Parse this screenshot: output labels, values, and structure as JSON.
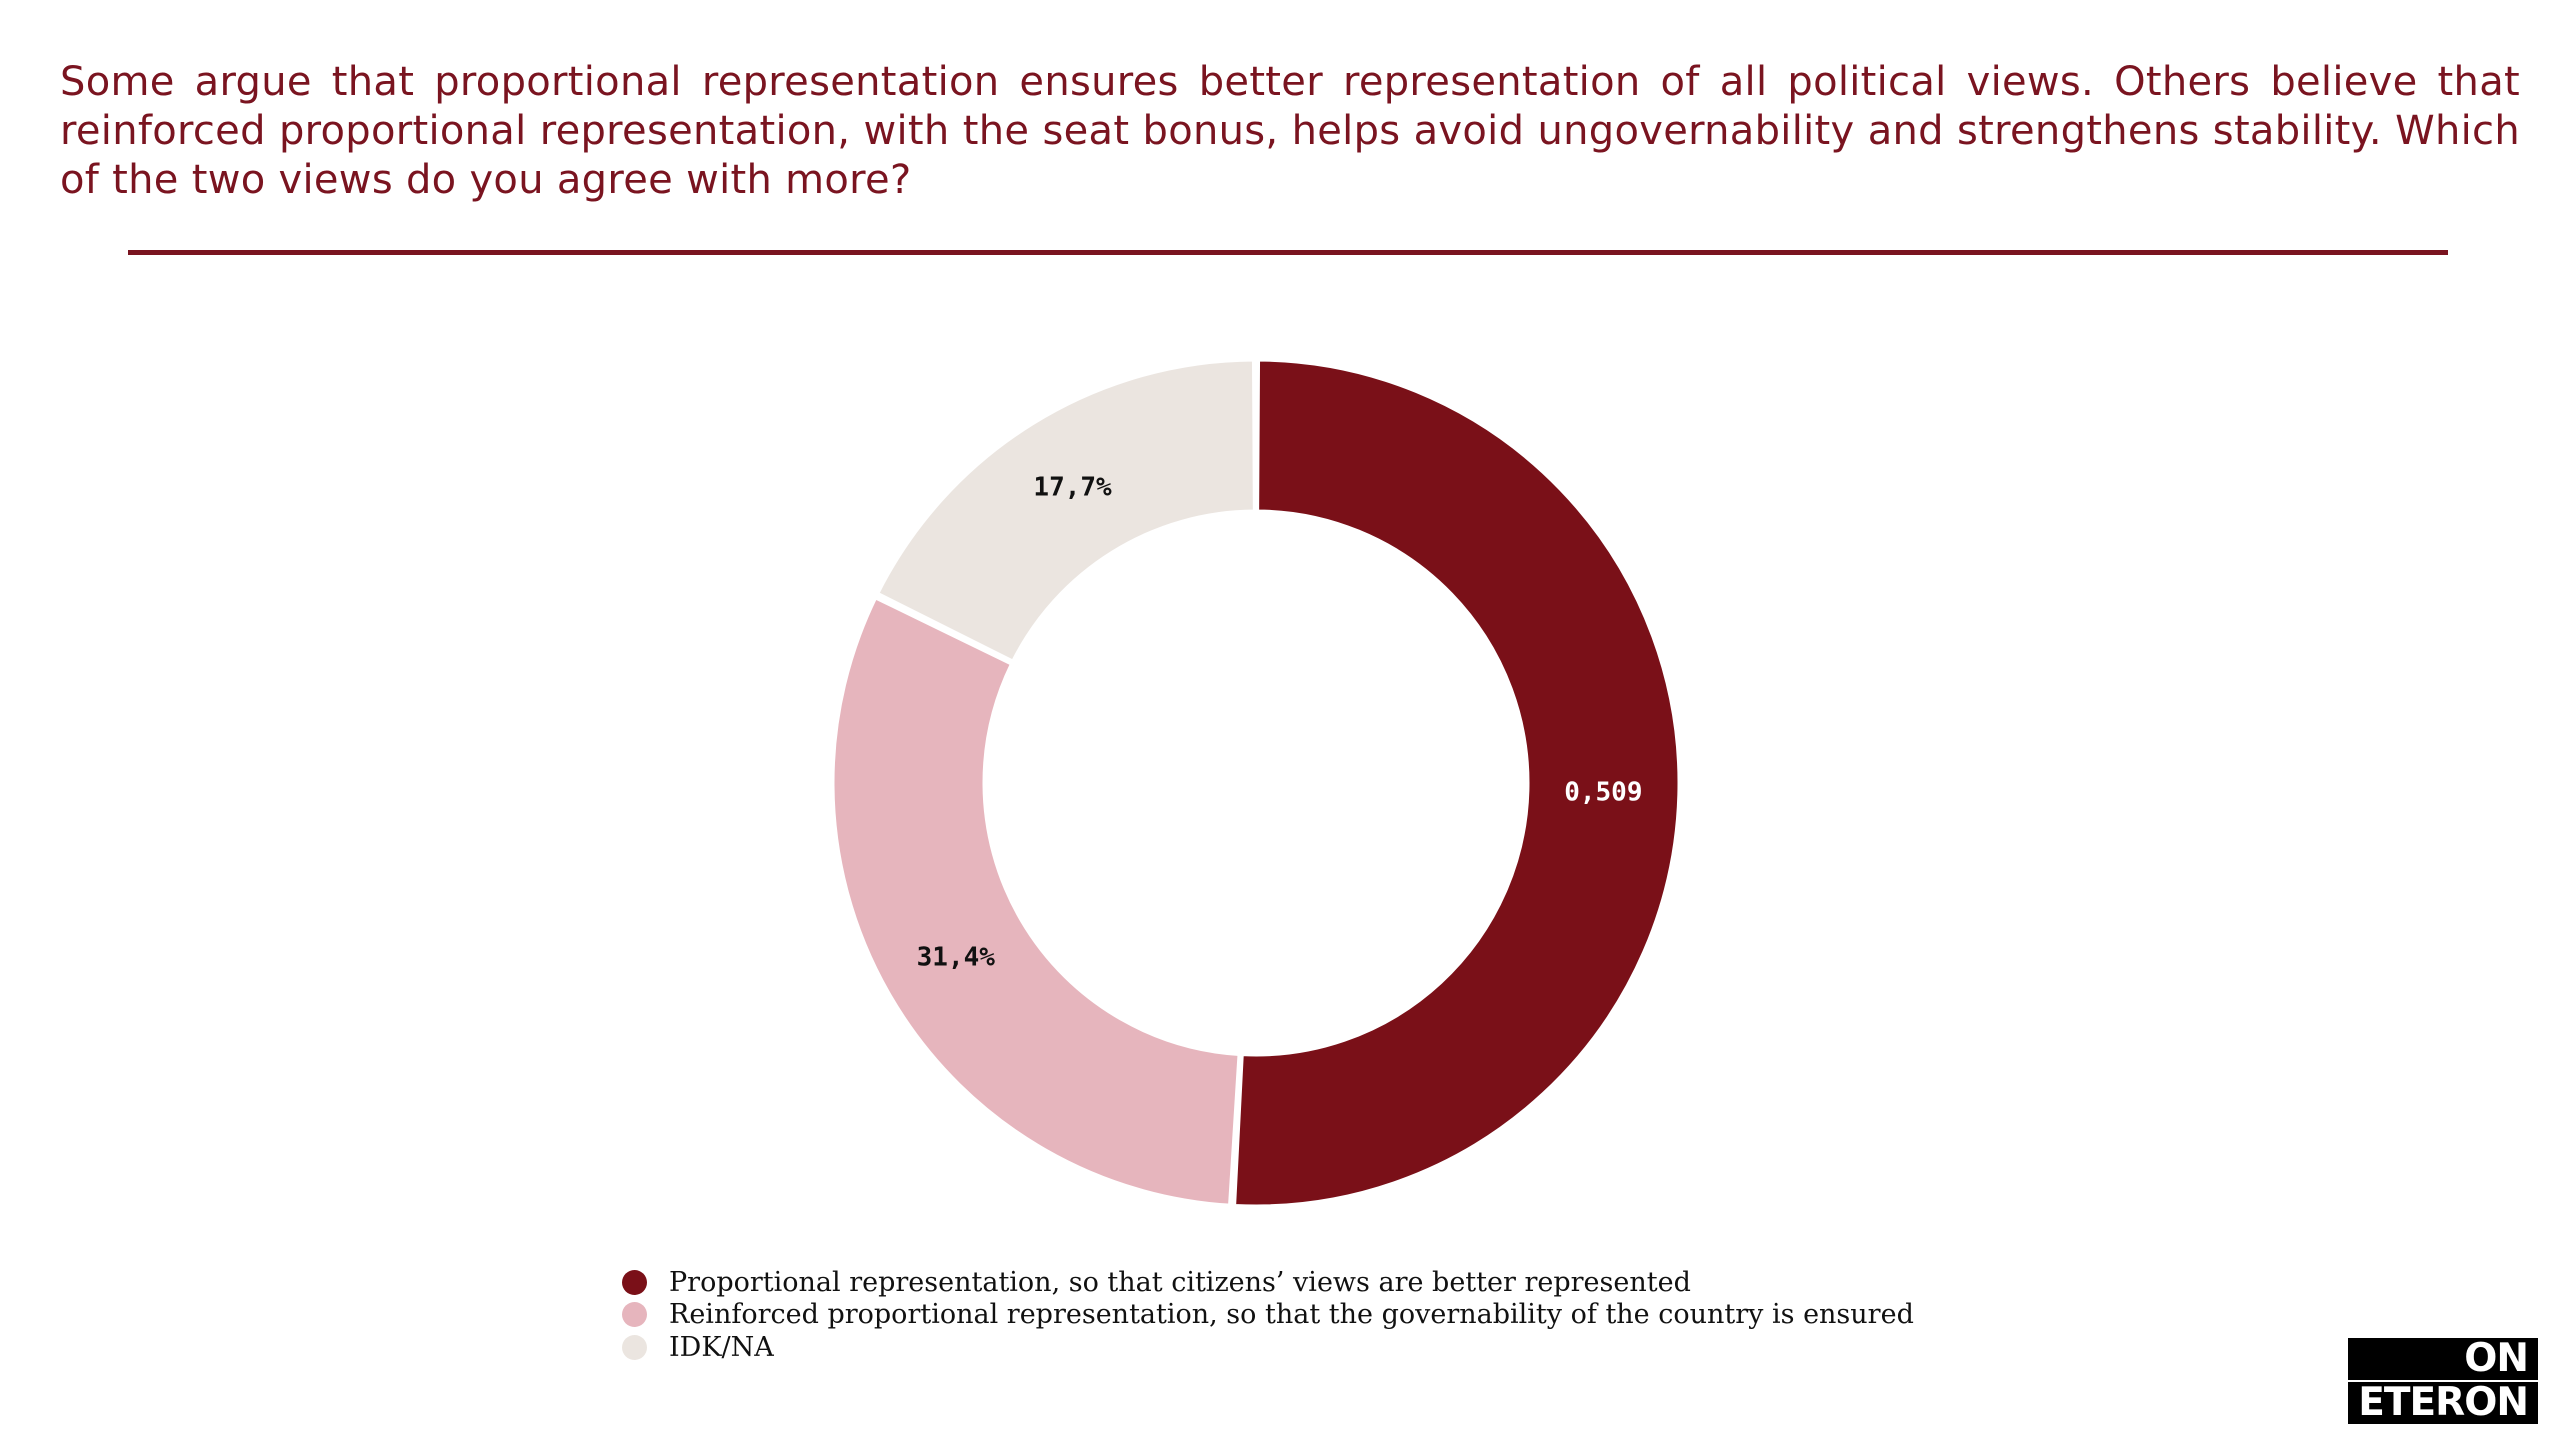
{
  "header": {
    "question": "Some argue that proportional representation ensures better representation of all political views. Others believe that reinforced proportional representation, with the seat bonus, helps avoid ungovernability and strengthens stability. Which of the two views do you agree with more?"
  },
  "chart_data": {
    "type": "pie",
    "variant": "donut",
    "title": "Some argue that proportional representation ensures better representation of all political views. Others believe that reinforced proportional representation, with the seat bonus, helps avoid ungovernability and strengthens stability. Which of the two views do you agree with more?",
    "legend_position": "bottom",
    "slices": [
      {
        "name": "Proportional representation, so that citizens’ views are better represented",
        "value": 50.9,
        "label": "0,509",
        "color": "#7a1018",
        "label_color": "#ffffff"
      },
      {
        "name": "Reinforced proportional representation, so that the governability of the country is ensured",
        "value": 31.4,
        "label": "31,4%",
        "color": "#e6b5bd",
        "label_color": "#111111"
      },
      {
        "name": "IDK/NA",
        "value": 17.7,
        "label": "17,7%",
        "color": "#ebe5e0",
        "label_color": "#111111"
      }
    ]
  },
  "legend": {
    "items": [
      {
        "label": "Proportional representation, so that citizens’ views are better represented",
        "color": "#7a1018"
      },
      {
        "label": "Reinforced proportional representation, so that the governability of the country is ensured",
        "color": "#e6b5bd"
      },
      {
        "label": "IDK/NA",
        "color": "#ebe5e0"
      }
    ]
  },
  "logo": {
    "line1": "ON",
    "line2": "ETERON"
  }
}
